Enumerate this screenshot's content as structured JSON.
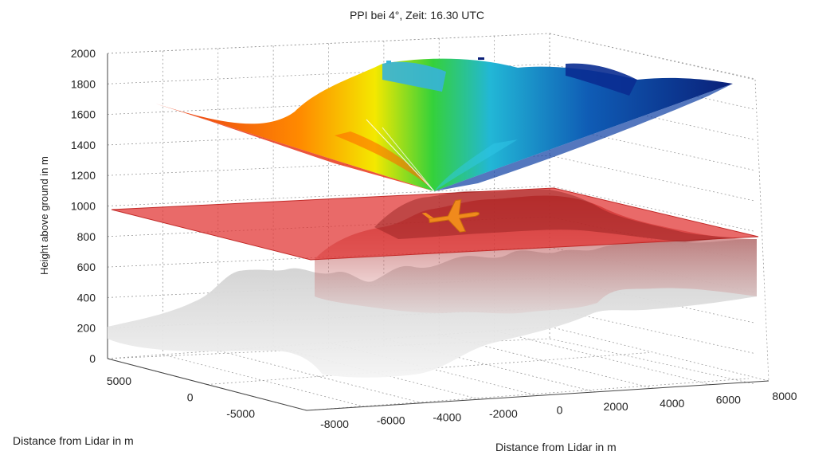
{
  "chart_data": {
    "type": "surface-3d",
    "title": "PPI bei 4°, Zeit: 16.30 UTC",
    "zlabel": "Height above ground in m",
    "xlabel": "Distance from Lidar in m",
    "ylabel": "Distance from  Lidar in m",
    "zlim": [
      0,
      2000
    ],
    "xlim": [
      -8000,
      8000
    ],
    "ylim": [
      -5000,
      5000
    ],
    "z_ticks": [
      "0",
      "200",
      "400",
      "600",
      "800",
      "1000",
      "1200",
      "1400",
      "1600",
      "1800",
      "2000"
    ],
    "x_ticks": [
      "-8000",
      "-6000",
      "-4000",
      "-2000",
      "0",
      "2000",
      "4000",
      "6000",
      "8000"
    ],
    "y_ticks": [
      "5000",
      "0",
      "-5000"
    ],
    "grid": true,
    "layers": [
      {
        "name": "lidar_scan",
        "kind": "colored fan surface",
        "apex_height": 1000,
        "colormap": "jet"
      },
      {
        "name": "flight_plane",
        "kind": "horizontal plane",
        "height": 1000,
        "color": "#e0312f"
      },
      {
        "name": "terrain",
        "kind": "topography surface",
        "color": "#d8d8d8"
      }
    ],
    "marker": {
      "icon": "airplane-icon",
      "color": "#f08a1c"
    }
  }
}
